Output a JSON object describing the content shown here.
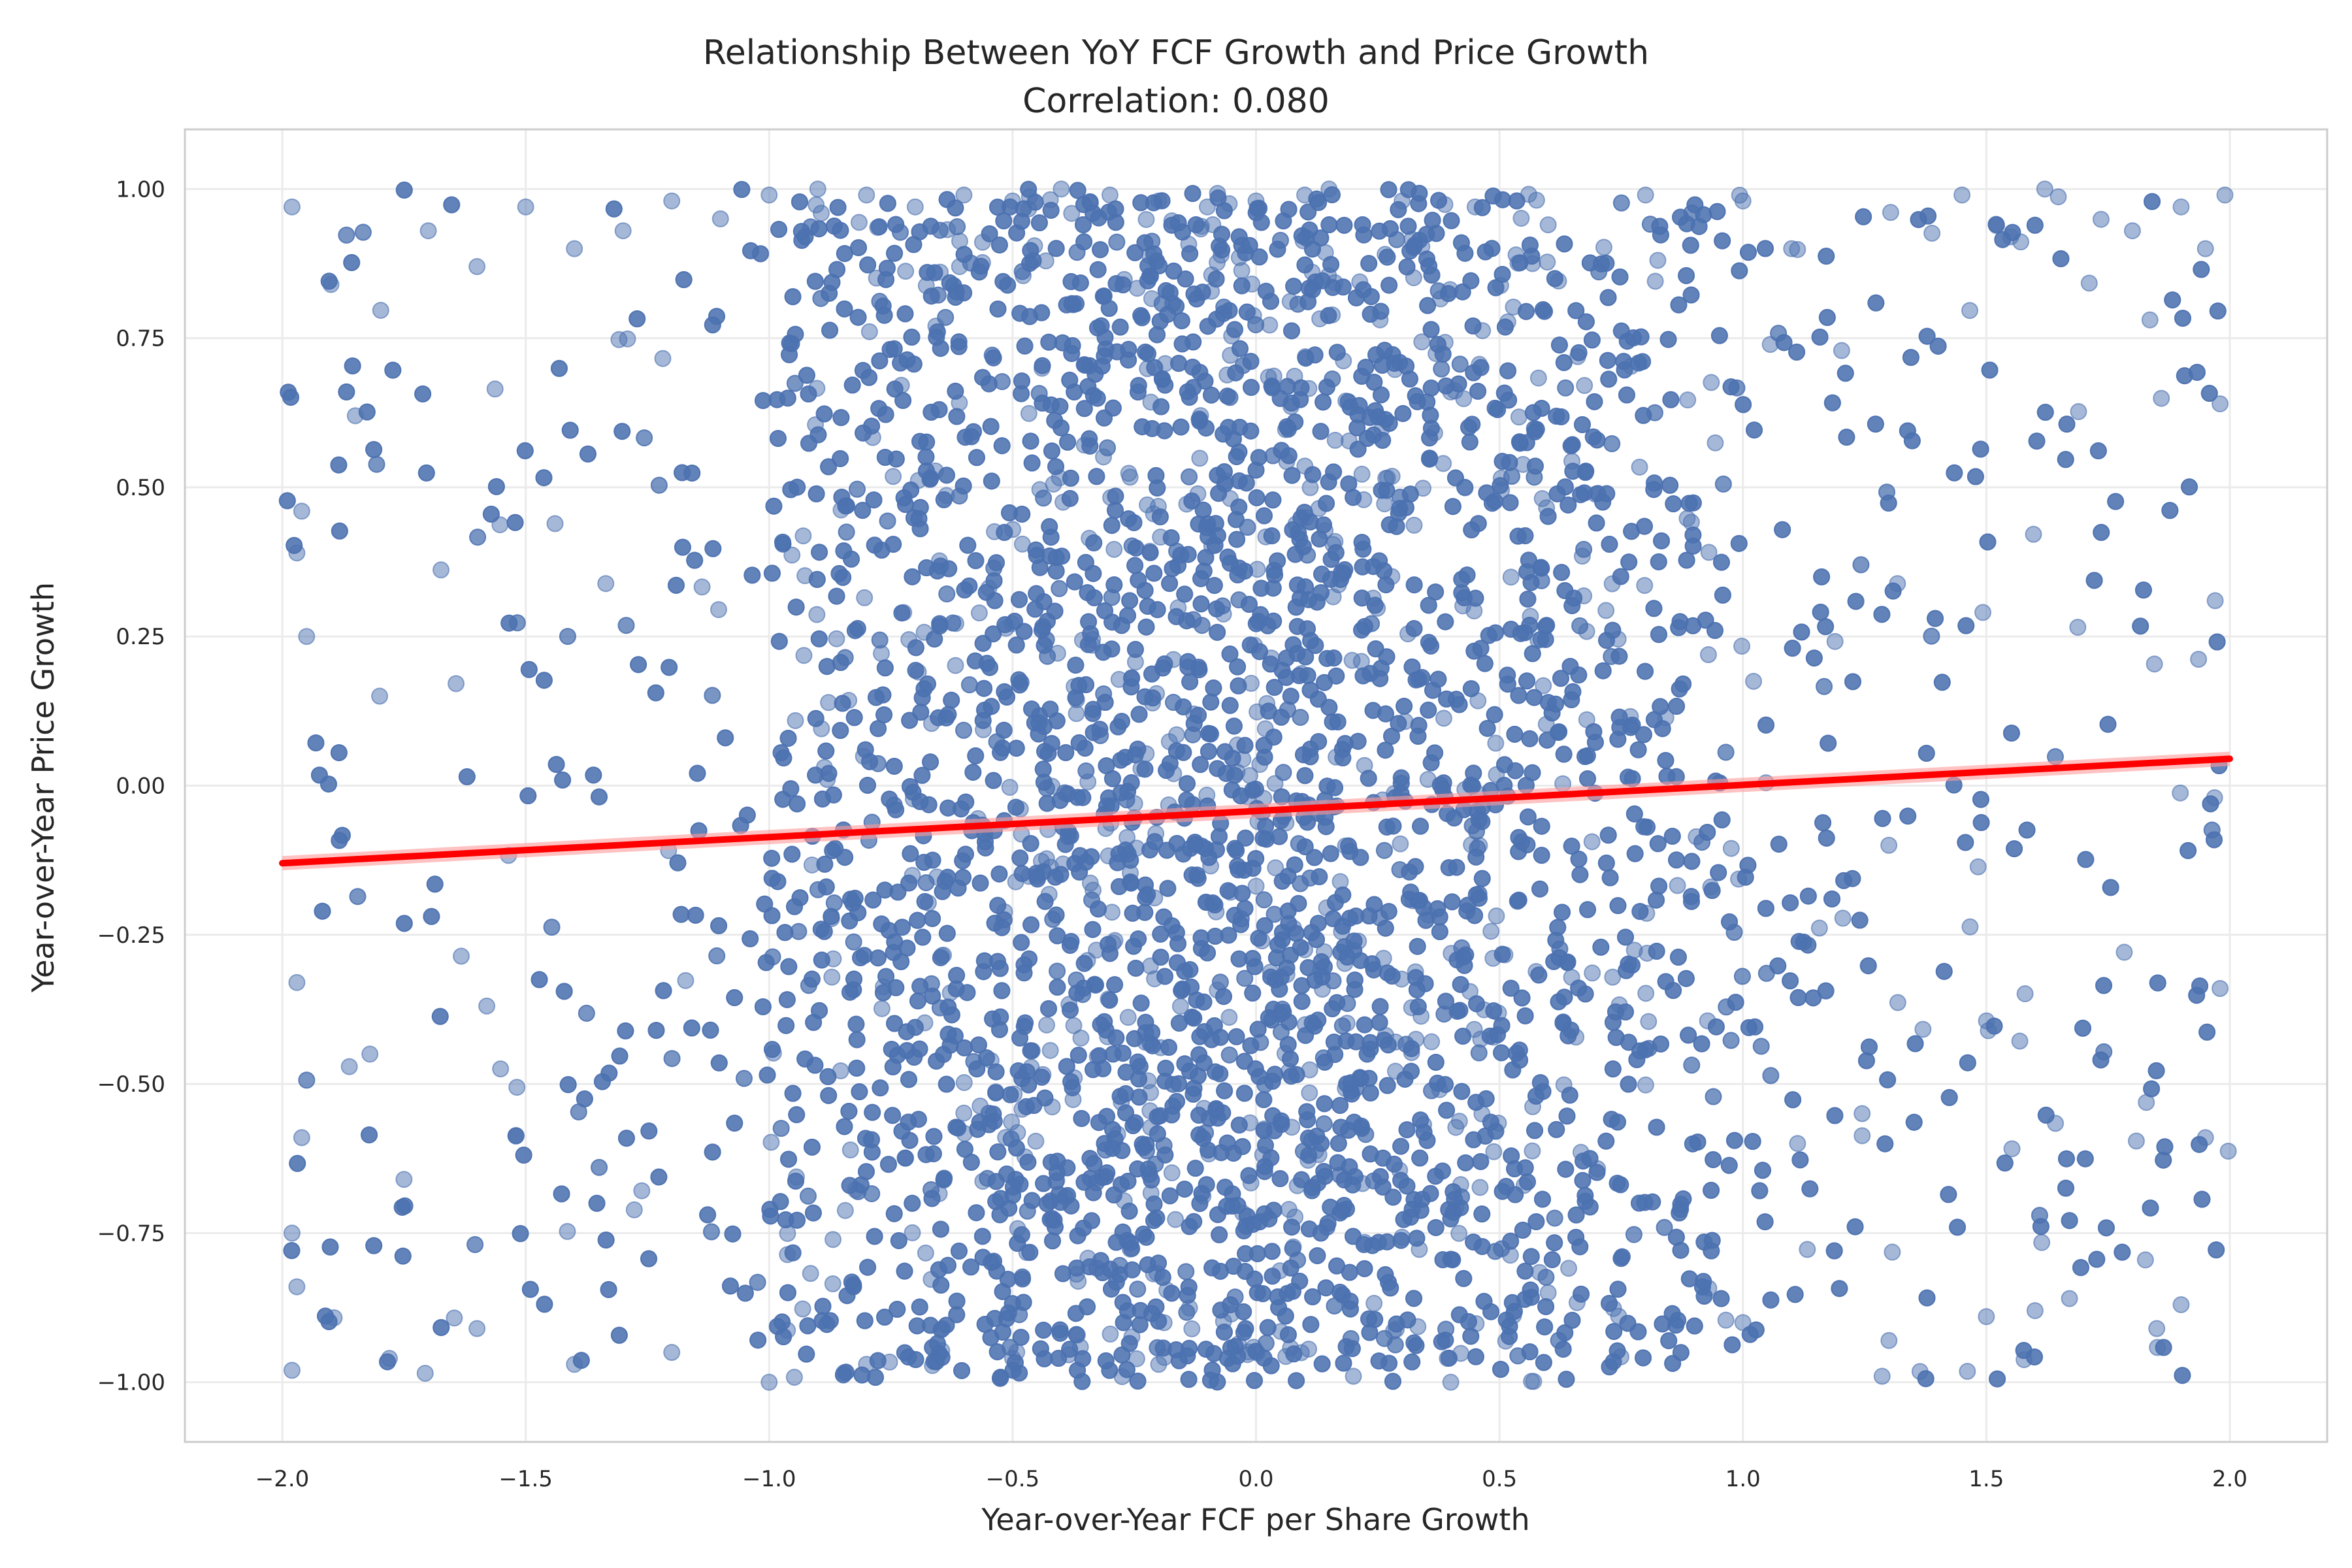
{
  "chart_data": {
    "type": "scatter",
    "title": "Relationship Between YoY FCF Growth and Price Growth",
    "subtitle": "Correlation: 0.080",
    "xlabel": "Year-over-Year FCF per Share Growth",
    "ylabel": "Year-over-Year Price Growth",
    "xlim": [
      -2.2,
      2.2
    ],
    "ylim": [
      -1.1,
      1.1
    ],
    "x_ticks": [
      -2.0,
      -1.5,
      -1.0,
      -0.5,
      0.0,
      0.5,
      1.0,
      1.5,
      2.0
    ],
    "x_tick_labels": [
      "−2.0",
      "−1.5",
      "−1.0",
      "−0.5",
      "0.0",
      "0.5",
      "1.0",
      "1.5",
      "2.0"
    ],
    "y_ticks": [
      -1.0,
      -0.75,
      -0.5,
      -0.25,
      0.0,
      0.25,
      0.5,
      0.75,
      1.0
    ],
    "y_tick_labels": [
      "−1.00",
      "−0.75",
      "−0.50",
      "−0.25",
      "0.00",
      "0.25",
      "0.50",
      "0.75",
      "1.00"
    ],
    "grid": true,
    "colors": {
      "points": "#4c72b0",
      "regression": "#ff0000",
      "grid": "#ebebeb",
      "spine": "#cccccc"
    },
    "regression": {
      "x": [
        -2.0,
        2.0
      ],
      "y": [
        -0.13,
        0.045
      ],
      "correlation": 0.08
    },
    "series": [
      {
        "points": [
          [
            -1.98,
            0.97
          ],
          [
            -1.96,
            0.46
          ],
          [
            -1.97,
            0.39
          ],
          [
            -1.95,
            0.25
          ],
          [
            -1.97,
            -0.33
          ],
          [
            -1.96,
            -0.59
          ],
          [
            -1.98,
            -0.75
          ],
          [
            -1.97,
            -0.84
          ],
          [
            -1.98,
            -0.98
          ],
          [
            -1.9,
            0.84
          ],
          [
            -1.85,
            0.62
          ],
          [
            -1.8,
            0.15
          ],
          [
            -1.82,
            -0.45
          ],
          [
            -1.75,
            -0.66
          ],
          [
            -1.7,
            0.93
          ],
          [
            -1.6,
            0.87
          ],
          [
            -1.5,
            0.97
          ],
          [
            -1.4,
            0.9
          ],
          [
            -1.3,
            0.93
          ],
          [
            -1.2,
            0.98
          ],
          [
            -1.1,
            0.95
          ],
          [
            -1.0,
            0.99
          ],
          [
            -0.9,
            1.0
          ],
          [
            -0.8,
            0.99
          ],
          [
            -0.7,
            0.97
          ],
          [
            -0.6,
            0.99
          ],
          [
            -0.5,
            0.98
          ],
          [
            -0.4,
            1.0
          ],
          [
            -0.3,
            0.99
          ],
          [
            -0.2,
            0.98
          ],
          [
            -0.1,
            0.97
          ],
          [
            0.0,
            0.98
          ],
          [
            0.1,
            0.99
          ],
          [
            0.15,
            1.0
          ],
          [
            0.3,
            0.98
          ],
          [
            0.45,
            0.97
          ],
          [
            0.6,
            0.94
          ],
          [
            0.8,
            0.99
          ],
          [
            1.0,
            0.98
          ],
          [
            1.1,
            0.9
          ],
          [
            1.45,
            0.99
          ],
          [
            1.55,
            0.92
          ],
          [
            1.62,
            1.0
          ],
          [
            1.8,
            0.93
          ],
          [
            1.9,
            0.97
          ],
          [
            1.95,
            0.9
          ],
          [
            1.99,
            0.99
          ],
          [
            1.98,
            0.64
          ],
          [
            1.97,
            0.31
          ],
          [
            1.98,
            -0.34
          ],
          [
            1.95,
            -0.59
          ],
          [
            1.9,
            -0.87
          ],
          [
            1.85,
            -0.91
          ],
          [
            1.6,
            -0.88
          ],
          [
            1.5,
            -0.89
          ],
          [
            1.3,
            -0.93
          ],
          [
            1.0,
            -0.9
          ],
          [
            0.6,
            -0.85
          ],
          [
            0.4,
            -1.0
          ],
          [
            0.2,
            -0.99
          ],
          [
            -0.2,
            -0.97
          ],
          [
            -0.5,
            -0.96
          ],
          [
            -0.8,
            -0.97
          ],
          [
            -1.0,
            -1.0
          ],
          [
            -1.2,
            -0.95
          ],
          [
            -1.4,
            -0.97
          ],
          [
            -1.6,
            -0.91
          ],
          [
            -1.78,
            -0.96
          ]
        ]
      }
    ]
  }
}
